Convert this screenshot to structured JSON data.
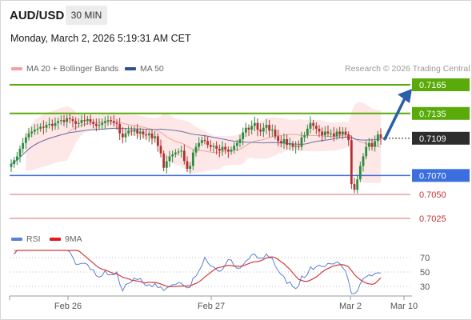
{
  "header": {
    "symbol": "AUD/USD",
    "timeframe": "30 MIN",
    "datetime": "Monday, March 2, 2026 5:19:31 AM CET",
    "research": "Research © 2026 Trading Central"
  },
  "legend": {
    "bollinger": "MA 20 + Bollinger Bands",
    "ma50": "MA 50",
    "rsi": "RSI",
    "ma9": "9MA"
  },
  "colors": {
    "resistance": "#5aab0a",
    "pivot": "#3b6fe0",
    "support": "#e06c6c",
    "arrow": "#2b5fa8",
    "up_candle": "#2e8b3e",
    "down_candle": "#b23030",
    "bollinger_fill": "#fde4e4",
    "ma50": "#3b5a9a",
    "rsi": "#5b7fd6",
    "ma9": "#d23a3a",
    "price_box": "#2d2d2d"
  },
  "chart_data": [
    {
      "type": "candlestick",
      "title": "AUD/USD 30 MIN",
      "x_labels": [
        "Feb 26",
        "Feb 27",
        "Mar 2",
        "Mar 10"
      ],
      "y_range": [
        0.7015,
        0.718
      ],
      "levels": [
        {
          "label": "0.7165",
          "value": 0.7165,
          "kind": "resistance"
        },
        {
          "label": "0.7135",
          "value": 0.7135,
          "kind": "resistance"
        },
        {
          "label": "0.7070",
          "value": 0.707,
          "kind": "pivot"
        },
        {
          "label": "0.7050",
          "value": 0.705,
          "kind": "support"
        },
        {
          "label": "0.7025",
          "value": 0.7025,
          "kind": "support"
        }
      ],
      "last_price": {
        "label": "0.7109",
        "value": 0.7109
      },
      "scenario": {
        "from": 0.7109,
        "to": 0.7165,
        "direction": "up"
      },
      "close": [
        0.7082,
        0.7086,
        0.709,
        0.7098,
        0.7104,
        0.711,
        0.7114,
        0.7116,
        0.7118,
        0.7119,
        0.7121,
        0.712,
        0.7123,
        0.7124,
        0.7122,
        0.7125,
        0.7127,
        0.7128,
        0.7126,
        0.713,
        0.7129,
        0.7127,
        0.7124,
        0.7125,
        0.7128,
        0.7127,
        0.7129,
        0.7126,
        0.7124,
        0.7122,
        0.7123,
        0.7125,
        0.7127,
        0.7128,
        0.7127,
        0.7125,
        0.7124,
        0.7114,
        0.711,
        0.7114,
        0.7117,
        0.7116,
        0.7118,
        0.7114,
        0.7116,
        0.7113,
        0.7112,
        0.7114,
        0.7109,
        0.7111,
        0.7101,
        0.7093,
        0.7078,
        0.7085,
        0.709,
        0.7092,
        0.7094,
        0.7095,
        0.7096,
        0.7085,
        0.7077,
        0.708,
        0.7094,
        0.71,
        0.7104,
        0.7107,
        0.7106,
        0.7102,
        0.71,
        0.7101,
        0.7098,
        0.7096,
        0.71,
        0.7097,
        0.7095,
        0.7097,
        0.7101,
        0.7104,
        0.7108,
        0.7115,
        0.712,
        0.7118,
        0.7122,
        0.7125,
        0.7118,
        0.7116,
        0.712,
        0.7123,
        0.7117,
        0.7118,
        0.7111,
        0.7106,
        0.7104,
        0.7108,
        0.7102,
        0.7103,
        0.71,
        0.7101,
        0.71,
        0.711,
        0.7112,
        0.7119,
        0.7125,
        0.7122,
        0.7119,
        0.7116,
        0.7112,
        0.7116,
        0.7114,
        0.7114,
        0.7111,
        0.7116,
        0.7113,
        0.7116,
        0.7113,
        0.7107,
        0.7061,
        0.7055,
        0.7066,
        0.708,
        0.709,
        0.71,
        0.7104,
        0.71,
        0.7106,
        0.7113,
        0.7109
      ],
      "rsi": {
        "y_range": [
          20,
          80
        ],
        "ticks": [
          70,
          50,
          30
        ]
      }
    }
  ]
}
